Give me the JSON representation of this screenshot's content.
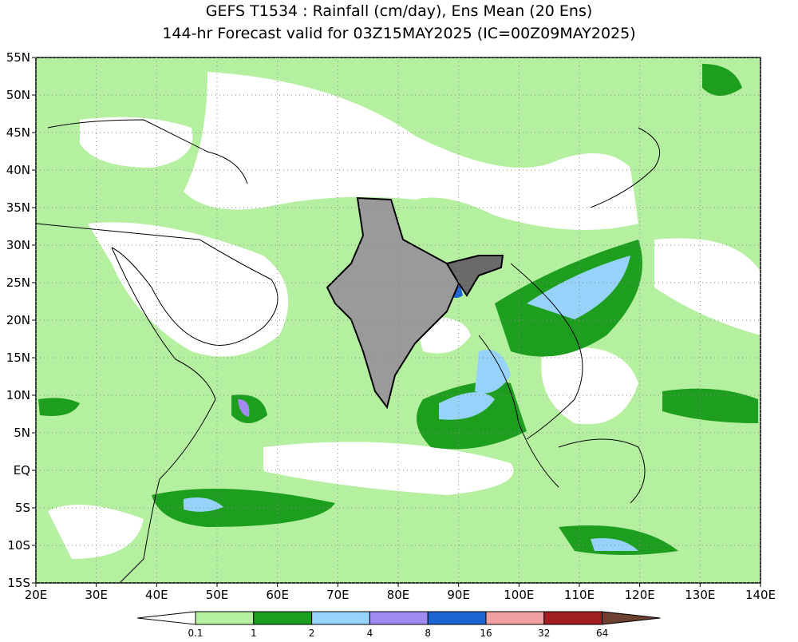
{
  "title": [
    "GEFS T1534 : Rainfall (cm/day), Ens Mean (20 Ens)",
    "144-hr Forecast valid for 03Z15MAY2025 (IC=00Z09MAY2025)"
  ],
  "map": {
    "xlim": [
      20,
      140
    ],
    "ylim": [
      -15,
      55
    ],
    "xticks": [
      {
        "value": 20,
        "label": "20E"
      },
      {
        "value": 30,
        "label": "30E"
      },
      {
        "value": 40,
        "label": "40E"
      },
      {
        "value": 50,
        "label": "50E"
      },
      {
        "value": 60,
        "label": "60E"
      },
      {
        "value": 70,
        "label": "70E"
      },
      {
        "value": 80,
        "label": "80E"
      },
      {
        "value": 90,
        "label": "90E"
      },
      {
        "value": 100,
        "label": "100E"
      },
      {
        "value": 110,
        "label": "110E"
      },
      {
        "value": 120,
        "label": "120E"
      },
      {
        "value": 130,
        "label": "130E"
      },
      {
        "value": 140,
        "label": "140E"
      }
    ],
    "yticks": [
      {
        "value": 55,
        "label": "55N"
      },
      {
        "value": 50,
        "label": "50N"
      },
      {
        "value": 45,
        "label": "45N"
      },
      {
        "value": 40,
        "label": "40N"
      },
      {
        "value": 35,
        "label": "35N"
      },
      {
        "value": 30,
        "label": "30N"
      },
      {
        "value": 25,
        "label": "25N"
      },
      {
        "value": 20,
        "label": "20N"
      },
      {
        "value": 15,
        "label": "15N"
      },
      {
        "value": 10,
        "label": "10N"
      },
      {
        "value": 5,
        "label": "5N"
      },
      {
        "value": 0,
        "label": "EQ"
      },
      {
        "value": -5,
        "label": "5S"
      },
      {
        "value": -10,
        "label": "10S"
      },
      {
        "value": -15,
        "label": "15S"
      }
    ]
  },
  "colorbar": {
    "colors": [
      "#ffffff",
      "#b4f0a0",
      "#1e9e1e",
      "#96d2fa",
      "#a08cf0",
      "#1e64d2",
      "#f0a0a0",
      "#a01e1e",
      "#6e4032"
    ],
    "labels": [
      0.1,
      1,
      2,
      4,
      8,
      16,
      32,
      64
    ]
  }
}
